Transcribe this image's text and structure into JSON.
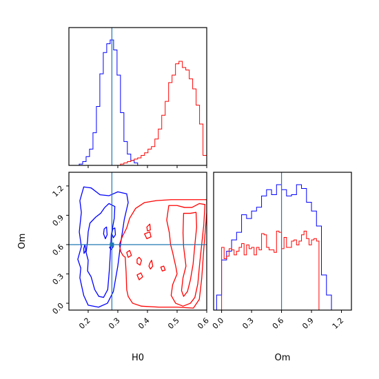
{
  "chart_data": {
    "type": "corner",
    "parameters": [
      "H0",
      "Om"
    ],
    "truths": {
      "H0": 0.28,
      "Om": 0.6
    },
    "colors": {
      "run_a": "#0000ff",
      "run_b": "#ff0000",
      "truth": "#1f77b4"
    },
    "panels": [
      {
        "id": "hist-h0",
        "type": "histogram",
        "xlim": [
          0.135,
          0.6
        ],
        "x_ticks": [
          0.2,
          0.3,
          0.4,
          0.5,
          0.6
        ],
        "x_tick_labels": [],
        "y_ticks": [],
        "bins": {
          "start": 0.135,
          "width": 0.0116,
          "count": 40
        },
        "series": [
          {
            "color": "#0000ff",
            "counts": [
              0,
              0,
              0,
              0.01,
              0.03,
              0.07,
              0.13,
              0.26,
              0.47,
              0.73,
              0.9,
              0.97,
              1.0,
              0.92,
              0.72,
              0.42,
              0.19,
              0.09,
              0.04,
              0.02,
              0,
              0,
              0,
              0,
              0,
              0,
              0,
              0,
              0,
              0,
              0,
              0,
              0,
              0,
              0,
              0,
              0,
              0,
              0,
              0
            ]
          },
          {
            "color": "#ff0000",
            "counts": [
              0,
              0,
              0,
              0,
              0,
              0,
              0,
              0,
              0,
              0,
              0,
              0,
              0,
              0,
              0,
              0.01,
              0.02,
              0.03,
              0.04,
              0.05,
              0.06,
              0.08,
              0.1,
              0.13,
              0.15,
              0.21,
              0.29,
              0.4,
              0.51,
              0.66,
              0.72,
              0.81,
              0.83,
              0.78,
              0.76,
              0.69,
              0.61,
              0.48,
              0.33,
              0.08
            ]
          }
        ]
      },
      {
        "id": "hist-om",
        "type": "histogram",
        "xlim": [
          -0.08,
          1.3
        ],
        "x_ticks": [
          0.0,
          0.3,
          0.6,
          0.9,
          1.2
        ],
        "x_tick_labels": [
          "0.0",
          "0.3",
          "0.6",
          "0.9",
          "1.2"
        ],
        "y_ticks": [],
        "xlabel": "Om",
        "series": [
          {
            "color": "#0000ff",
            "bins": {
              "start": -0.05,
              "width": 0.05,
              "count": 24
            },
            "counts": [
              0.12,
              0.4,
              0.47,
              0.56,
              0.62,
              0.76,
              0.73,
              0.79,
              0.82,
              0.91,
              0.96,
              0.92,
              1.0,
              0.96,
              0.91,
              0.92,
              1.0,
              0.97,
              0.86,
              0.79,
              0.67,
              0.28,
              0.12,
              0
            ]
          },
          {
            "color": "#ff0000",
            "bins": {
              "start": 0.0,
              "width": 0.025,
              "count": 40
            },
            "counts": [
              0.5,
              0.41,
              0.43,
              0.49,
              0.48,
              0.44,
              0.47,
              0.5,
              0.53,
              0.44,
              0.52,
              0.49,
              0.5,
              0.44,
              0.5,
              0.48,
              0.61,
              0.6,
              0.5,
              0.48,
              0.48,
              0.46,
              0.63,
              0.62,
              0.49,
              0.58,
              0.5,
              0.5,
              0.55,
              0.56,
              0.52,
              0.55,
              0.6,
              0.63,
              0.57,
              0.52,
              0.56,
              0.57,
              0.55,
              0
            ]
          }
        ]
      },
      {
        "id": "contour-h0-om",
        "type": "contour",
        "xlim": [
          0.135,
          0.6
        ],
        "ylim": [
          -0.07,
          1.34
        ],
        "x_ticks": [
          0.2,
          0.3,
          0.4,
          0.5,
          0.6
        ],
        "x_tick_labels": [
          "0.2",
          "0.3",
          "0.4",
          "0.5",
          "0.6"
        ],
        "y_ticks": [
          0.0,
          0.3,
          0.6,
          0.9,
          1.2
        ],
        "y_tick_labels": [
          "0.0",
          "0.3",
          "0.6",
          "0.9",
          "1.2"
        ],
        "xlabel": "H0",
        "ylabel": "Om",
        "contours": [
          {
            "color": "#0000ff",
            "points": [
              [
                0.185,
                1.19
              ],
              [
                0.21,
                1.18
              ],
              [
                0.24,
                1.11
              ],
              [
                0.27,
                1.1
              ],
              [
                0.3,
                1.14
              ],
              [
                0.33,
                1.12
              ],
              [
                0.335,
                1.03
              ],
              [
                0.322,
                0.86
              ],
              [
                0.31,
                0.62
              ],
              [
                0.3,
                0.38
              ],
              [
                0.285,
                0.12
              ],
              [
                0.265,
                0.0
              ],
              [
                0.235,
                -0.04
              ],
              [
                0.2,
                -0.02
              ],
              [
                0.185,
                0.08
              ],
              [
                0.172,
                0.26
              ],
              [
                0.175,
                0.36
              ],
              [
                0.165,
                0.45
              ],
              [
                0.177,
                0.58
              ],
              [
                0.17,
                0.73
              ],
              [
                0.177,
                0.93
              ],
              [
                0.172,
                1.05
              ]
            ]
          },
          {
            "color": "#0000ff",
            "points": [
              [
                0.206,
                0.82
              ],
              [
                0.225,
                0.88
              ],
              [
                0.242,
                0.92
              ],
              [
                0.256,
                0.98
              ],
              [
                0.27,
                1.02
              ],
              [
                0.29,
                0.99
              ],
              [
                0.288,
                0.87
              ],
              [
                0.278,
                0.7
              ],
              [
                0.276,
                0.58
              ],
              [
                0.272,
                0.36
              ],
              [
                0.266,
                0.14
              ],
              [
                0.252,
                0.06
              ],
              [
                0.236,
                0.07
              ],
              [
                0.222,
                0.14
              ],
              [
                0.21,
                0.27
              ],
              [
                0.198,
                0.33
              ],
              [
                0.2,
                0.44
              ],
              [
                0.193,
                0.52
              ],
              [
                0.198,
                0.64
              ],
              [
                0.2,
                0.73
              ]
            ]
          },
          {
            "color": "#0000ff",
            "points": [
              [
                0.254,
                0.76
              ],
              [
                0.262,
                0.78
              ],
              [
                0.264,
                0.7
              ],
              [
                0.258,
                0.66
              ],
              [
                0.252,
                0.71
              ]
            ]
          },
          {
            "color": "#0000ff",
            "points": [
              [
                0.283,
                0.76
              ],
              [
                0.29,
                0.77
              ],
              [
                0.292,
                0.7
              ],
              [
                0.285,
                0.67
              ],
              [
                0.28,
                0.71
              ]
            ]
          },
          {
            "color": "#0000ff",
            "points": [
              [
                0.185,
                0.56
              ],
              [
                0.189,
                0.6
              ],
              [
                0.192,
                0.54
              ],
              [
                0.186,
                0.51
              ]
            ]
          },
          {
            "color": "#0000ff",
            "points": [
              [
                0.272,
                0.57
              ],
              [
                0.281,
                0.6
              ],
              [
                0.285,
                0.58
              ],
              [
                0.278,
                0.55
              ]
            ]
          },
          {
            "color": "#ff0000",
            "points": [
              [
                0.39,
                1.03
              ],
              [
                0.43,
                1.05
              ],
              [
                0.48,
                1.06
              ],
              [
                0.55,
                1.06
              ],
              [
                0.6,
                1.06
              ],
              [
                0.6,
                0.93
              ],
              [
                0.59,
                0.55
              ],
              [
                0.583,
                0.25
              ],
              [
                0.575,
                0.04
              ],
              [
                0.555,
                -0.05
              ],
              [
                0.5,
                -0.04
              ],
              [
                0.44,
                -0.04
              ],
              [
                0.38,
                -0.03
              ],
              [
                0.35,
                -0.0
              ],
              [
                0.335,
                0.07
              ],
              [
                0.33,
                0.14
              ],
              [
                0.328,
                0.32
              ],
              [
                0.325,
                0.47
              ],
              [
                0.317,
                0.49
              ],
              [
                0.31,
                0.53
              ],
              [
                0.305,
                0.6
              ],
              [
                0.315,
                0.68
              ],
              [
                0.33,
                0.77
              ],
              [
                0.34,
                0.87
              ],
              [
                0.36,
                0.97
              ]
            ]
          },
          {
            "color": "#ff0000",
            "points": [
              [
                0.472,
                1.0
              ],
              [
                0.5,
                1.0
              ],
              [
                0.525,
                0.98
              ],
              [
                0.55,
                0.98
              ],
              [
                0.575,
                1.02
              ],
              [
                0.594,
                1.01
              ],
              [
                0.59,
                0.8
              ],
              [
                0.583,
                0.6
              ],
              [
                0.576,
                0.4
              ],
              [
                0.57,
                0.2
              ],
              [
                0.56,
                0.06
              ],
              [
                0.545,
                0.0
              ],
              [
                0.52,
                -0.03
              ],
              [
                0.495,
                0.0
              ],
              [
                0.48,
                0.08
              ],
              [
                0.485,
                0.19
              ],
              [
                0.5,
                0.3
              ],
              [
                0.496,
                0.37
              ],
              [
                0.49,
                0.45
              ],
              [
                0.485,
                0.52
              ],
              [
                0.478,
                0.6
              ],
              [
                0.474,
                0.72
              ],
              [
                0.465,
                0.85
              ]
            ]
          },
          {
            "color": "#ff0000",
            "points": [
              [
                0.522,
                0.92
              ],
              [
                0.545,
                0.92
              ],
              [
                0.564,
                0.93
              ],
              [
                0.566,
                0.78
              ],
              [
                0.56,
                0.6
              ],
              [
                0.554,
                0.4
              ],
              [
                0.545,
                0.24
              ],
              [
                0.535,
                0.12
              ],
              [
                0.522,
                0.07
              ],
              [
                0.515,
                0.13
              ],
              [
                0.52,
                0.26
              ],
              [
                0.53,
                0.38
              ],
              [
                0.526,
                0.48
              ],
              [
                0.522,
                0.58
              ],
              [
                0.52,
                0.72
              ]
            ]
          },
          {
            "color": "#ff0000",
            "points": [
              [
                0.365,
                0.45
              ],
              [
                0.372,
                0.47
              ],
              [
                0.38,
                0.44
              ],
              [
                0.375,
                0.39
              ],
              [
                0.365,
                0.41
              ]
            ]
          },
          {
            "color": "#ff0000",
            "points": [
              [
                0.408,
                0.41
              ],
              [
                0.414,
                0.44
              ],
              [
                0.418,
                0.38
              ],
              [
                0.41,
                0.35
              ],
              [
                0.405,
                0.38
              ]
            ]
          },
          {
            "color": "#ff0000",
            "points": [
              [
                0.365,
                0.29
              ],
              [
                0.378,
                0.31
              ],
              [
                0.384,
                0.27
              ],
              [
                0.372,
                0.24
              ]
            ]
          },
          {
            "color": "#ff0000",
            "points": [
              [
                0.39,
                0.71
              ],
              [
                0.408,
                0.73
              ],
              [
                0.412,
                0.68
              ],
              [
                0.398,
                0.66
              ]
            ]
          },
          {
            "color": "#ff0000",
            "points": [
              [
                0.398,
                0.78
              ],
              [
                0.408,
                0.81
              ],
              [
                0.41,
                0.75
              ],
              [
                0.4,
                0.74
              ]
            ]
          },
          {
            "color": "#ff0000",
            "points": [
              [
                0.33,
                0.52
              ],
              [
                0.34,
                0.54
              ],
              [
                0.346,
                0.49
              ],
              [
                0.335,
                0.47
              ]
            ]
          },
          {
            "color": "#ff0000",
            "points": [
              [
                0.445,
                0.37
              ],
              [
                0.455,
                0.38
              ],
              [
                0.46,
                0.34
              ],
              [
                0.45,
                0.33
              ]
            ]
          }
        ]
      }
    ]
  }
}
